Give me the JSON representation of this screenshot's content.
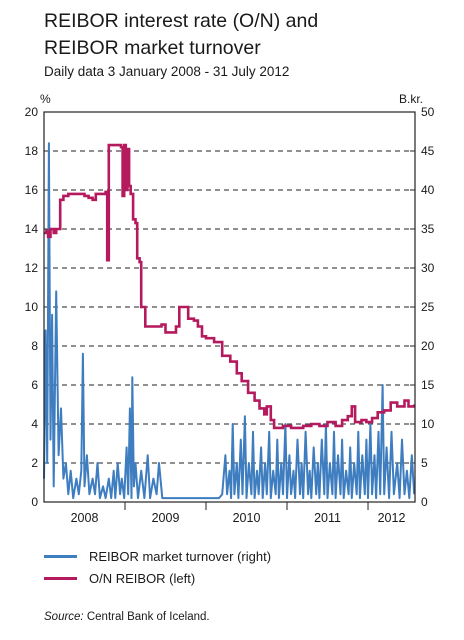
{
  "title_line1": "REIBOR interest rate (O/N) and",
  "title_line2": "REIBOR market turnover",
  "subtitle": "Daily data 3 January 2008 - 31 July 2012",
  "source_label": "Source:",
  "source_text": "Central Bank of Iceland.",
  "colors": {
    "turnover": "#3e7dbf",
    "reibor": "#b5195e"
  },
  "chart_data": {
    "type": "line",
    "x_axis": {
      "categories": [
        "2008",
        "2009",
        "2010",
        "2011",
        "2012"
      ],
      "range": [
        2008.0,
        2012.58
      ]
    },
    "left_axis": {
      "unit": "%",
      "range": [
        0,
        20
      ],
      "ticks": [
        0,
        2,
        4,
        6,
        8,
        10,
        12,
        14,
        16,
        18,
        20
      ]
    },
    "right_axis": {
      "unit": "B.kr.",
      "range": [
        0,
        50
      ],
      "ticks": [
        0,
        5,
        10,
        15,
        20,
        25,
        30,
        35,
        40,
        45,
        50
      ]
    },
    "grid": "dashed horizontal",
    "legend_position": "bottom",
    "series": [
      {
        "name": "REIBOR market turnover (right)",
        "axis": "right",
        "style": "spiky",
        "points": [
          [
            2008.0,
            3
          ],
          [
            2008.02,
            22
          ],
          [
            2008.04,
            5
          ],
          [
            2008.06,
            46
          ],
          [
            2008.08,
            8
          ],
          [
            2008.1,
            24
          ],
          [
            2008.12,
            2
          ],
          [
            2008.15,
            27
          ],
          [
            2008.18,
            6
          ],
          [
            2008.21,
            12
          ],
          [
            2008.24,
            3
          ],
          [
            2008.27,
            5
          ],
          [
            2008.3,
            1
          ],
          [
            2008.33,
            4
          ],
          [
            2008.36,
            0.5
          ],
          [
            2008.4,
            3
          ],
          [
            2008.43,
            1
          ],
          [
            2008.46,
            4
          ],
          [
            2008.48,
            19
          ],
          [
            2008.5,
            2
          ],
          [
            2008.53,
            6
          ],
          [
            2008.56,
            1
          ],
          [
            2008.6,
            3
          ],
          [
            2008.63,
            1
          ],
          [
            2008.66,
            5
          ],
          [
            2008.69,
            0.5
          ],
          [
            2008.73,
            2
          ],
          [
            2008.76,
            0.5
          ],
          [
            2008.8,
            3
          ],
          [
            2008.83,
            0.5
          ],
          [
            2008.86,
            4
          ],
          [
            2008.88,
            0.5
          ],
          [
            2008.91,
            5
          ],
          [
            2008.94,
            1
          ],
          [
            2008.96,
            3
          ],
          [
            2008.99,
            0.5
          ],
          [
            2009.02,
            7
          ],
          [
            2009.04,
            1
          ],
          [
            2009.06,
            12
          ],
          [
            2009.08,
            0.5
          ],
          [
            2009.09,
            16
          ],
          [
            2009.11,
            2
          ],
          [
            2009.13,
            5
          ],
          [
            2009.16,
            0.5
          ],
          [
            2009.2,
            4
          ],
          [
            2009.24,
            0.5
          ],
          [
            2009.28,
            6
          ],
          [
            2009.31,
            0.5
          ],
          [
            2009.35,
            3
          ],
          [
            2009.39,
            1
          ],
          [
            2009.42,
            5
          ],
          [
            2009.46,
            0.5
          ],
          [
            2009.5,
            0.5
          ],
          [
            2009.6,
            0.5
          ],
          [
            2009.7,
            0.5
          ],
          [
            2009.8,
            0.5
          ],
          [
            2009.9,
            0.5
          ],
          [
            2009.95,
            0.5
          ],
          [
            2010.0,
            0.5
          ],
          [
            2010.05,
            0.5
          ],
          [
            2010.1,
            0.5
          ],
          [
            2010.16,
            0.5
          ],
          [
            2010.2,
            1
          ],
          [
            2010.24,
            6
          ],
          [
            2010.26,
            1
          ],
          [
            2010.29,
            4
          ],
          [
            2010.31,
            0.5
          ],
          [
            2010.33,
            10
          ],
          [
            2010.35,
            1
          ],
          [
            2010.38,
            5
          ],
          [
            2010.4,
            0.5
          ],
          [
            2010.43,
            8
          ],
          [
            2010.45,
            1
          ],
          [
            2010.48,
            11
          ],
          [
            2010.5,
            0.5
          ],
          [
            2010.53,
            5
          ],
          [
            2010.56,
            1
          ],
          [
            2010.58,
            9
          ],
          [
            2010.6,
            0.5
          ],
          [
            2010.63,
            4
          ],
          [
            2010.65,
            1
          ],
          [
            2010.68,
            7
          ],
          [
            2010.7,
            0.5
          ],
          [
            2010.73,
            5
          ],
          [
            2010.75,
            1
          ],
          [
            2010.78,
            9
          ],
          [
            2010.8,
            0.5
          ],
          [
            2010.83,
            4
          ],
          [
            2010.86,
            1
          ],
          [
            2010.88,
            8
          ],
          [
            2010.9,
            0.5
          ],
          [
            2010.93,
            5
          ],
          [
            2010.95,
            1
          ],
          [
            2010.98,
            10
          ],
          [
            2011.0,
            0.5
          ],
          [
            2011.03,
            6
          ],
          [
            2011.05,
            1
          ],
          [
            2011.08,
            4
          ],
          [
            2011.1,
            0.5
          ],
          [
            2011.13,
            8
          ],
          [
            2011.16,
            1
          ],
          [
            2011.18,
            5
          ],
          [
            2011.2,
            0.5
          ],
          [
            2011.23,
            9
          ],
          [
            2011.26,
            1
          ],
          [
            2011.28,
            4
          ],
          [
            2011.3,
            0.5
          ],
          [
            2011.33,
            7
          ],
          [
            2011.36,
            1
          ],
          [
            2011.38,
            5
          ],
          [
            2011.4,
            0.5
          ],
          [
            2011.43,
            8
          ],
          [
            2011.46,
            1
          ],
          [
            2011.48,
            10
          ],
          [
            2011.5,
            0.5
          ],
          [
            2011.53,
            5
          ],
          [
            2011.56,
            1
          ],
          [
            2011.58,
            9
          ],
          [
            2011.6,
            0.5
          ],
          [
            2011.63,
            6
          ],
          [
            2011.66,
            1
          ],
          [
            2011.68,
            8
          ],
          [
            2011.7,
            0.5
          ],
          [
            2011.73,
            4
          ],
          [
            2011.76,
            1
          ],
          [
            2011.78,
            7
          ],
          [
            2011.8,
            0.5
          ],
          [
            2011.83,
            5
          ],
          [
            2011.86,
            1
          ],
          [
            2011.88,
            9
          ],
          [
            2011.9,
            0.5
          ],
          [
            2011.93,
            6
          ],
          [
            2011.96,
            1
          ],
          [
            2011.98,
            8
          ],
          [
            2012.0,
            0.5
          ],
          [
            2012.03,
            10
          ],
          [
            2012.05,
            1
          ],
          [
            2012.08,
            6
          ],
          [
            2012.1,
            0.5
          ],
          [
            2012.13,
            9
          ],
          [
            2012.15,
            1
          ],
          [
            2012.18,
            15
          ],
          [
            2012.2,
            1
          ],
          [
            2012.23,
            7
          ],
          [
            2012.26,
            0.5
          ],
          [
            2012.29,
            9
          ],
          [
            2012.32,
            1
          ],
          [
            2012.36,
            5
          ],
          [
            2012.39,
            0.5
          ],
          [
            2012.42,
            8
          ],
          [
            2012.45,
            1
          ],
          [
            2012.48,
            4
          ],
          [
            2012.51,
            0.5
          ],
          [
            2012.54,
            6
          ],
          [
            2012.57,
            1
          ]
        ]
      },
      {
        "name": "O/N REIBOR (left)",
        "axis": "left",
        "style": "step",
        "points": [
          [
            2008.0,
            13.8
          ],
          [
            2008.03,
            13.9
          ],
          [
            2008.05,
            13.6
          ],
          [
            2008.08,
            14.0
          ],
          [
            2008.12,
            13.8
          ],
          [
            2008.15,
            14.0
          ],
          [
            2008.2,
            15.5
          ],
          [
            2008.24,
            15.7
          ],
          [
            2008.3,
            15.8
          ],
          [
            2008.4,
            15.8
          ],
          [
            2008.5,
            15.7
          ],
          [
            2008.55,
            15.6
          ],
          [
            2008.6,
            15.5
          ],
          [
            2008.64,
            15.8
          ],
          [
            2008.72,
            15.8
          ],
          [
            2008.76,
            15.9
          ],
          [
            2008.78,
            12.4
          ],
          [
            2008.8,
            18.3
          ],
          [
            2008.9,
            18.3
          ],
          [
            2008.95,
            18.2
          ],
          [
            2008.97,
            15.7
          ],
          [
            2008.99,
            18.3
          ],
          [
            2009.01,
            16.0
          ],
          [
            2009.03,
            18.1
          ],
          [
            2009.05,
            16.2
          ],
          [
            2009.07,
            15.8
          ],
          [
            2009.1,
            14.5
          ],
          [
            2009.13,
            14.3
          ],
          [
            2009.15,
            12.5
          ],
          [
            2009.18,
            12.3
          ],
          [
            2009.2,
            10.0
          ],
          [
            2009.25,
            9.0
          ],
          [
            2009.35,
            9.0
          ],
          [
            2009.4,
            9.0
          ],
          [
            2009.45,
            9.1
          ],
          [
            2009.5,
            8.7
          ],
          [
            2009.6,
            8.7
          ],
          [
            2009.63,
            9.0
          ],
          [
            2009.67,
            10.0
          ],
          [
            2009.75,
            10.0
          ],
          [
            2009.78,
            9.4
          ],
          [
            2009.85,
            9.3
          ],
          [
            2009.9,
            9.0
          ],
          [
            2009.95,
            8.5
          ],
          [
            2010.0,
            8.4
          ],
          [
            2010.1,
            8.2
          ],
          [
            2010.2,
            7.5
          ],
          [
            2010.3,
            7.2
          ],
          [
            2010.38,
            6.6
          ],
          [
            2010.44,
            6.2
          ],
          [
            2010.52,
            5.6
          ],
          [
            2010.6,
            5.2
          ],
          [
            2010.66,
            4.8
          ],
          [
            2010.72,
            4.5
          ],
          [
            2010.75,
            4.9
          ],
          [
            2010.8,
            4.2
          ],
          [
            2010.84,
            3.8
          ],
          [
            2010.95,
            3.9
          ],
          [
            2011.05,
            3.8
          ],
          [
            2011.2,
            3.9
          ],
          [
            2011.3,
            4.0
          ],
          [
            2011.4,
            3.9
          ],
          [
            2011.5,
            4.1
          ],
          [
            2011.6,
            3.9
          ],
          [
            2011.68,
            4.2
          ],
          [
            2011.75,
            4.4
          ],
          [
            2011.8,
            4.9
          ],
          [
            2011.84,
            4.1
          ],
          [
            2011.92,
            4.2
          ],
          [
            2011.98,
            4.1
          ],
          [
            2012.05,
            4.3
          ],
          [
            2012.12,
            4.6
          ],
          [
            2012.2,
            4.7
          ],
          [
            2012.28,
            5.1
          ],
          [
            2012.36,
            4.9
          ],
          [
            2012.45,
            5.2
          ],
          [
            2012.5,
            4.9
          ],
          [
            2012.57,
            5.0
          ]
        ]
      }
    ]
  }
}
